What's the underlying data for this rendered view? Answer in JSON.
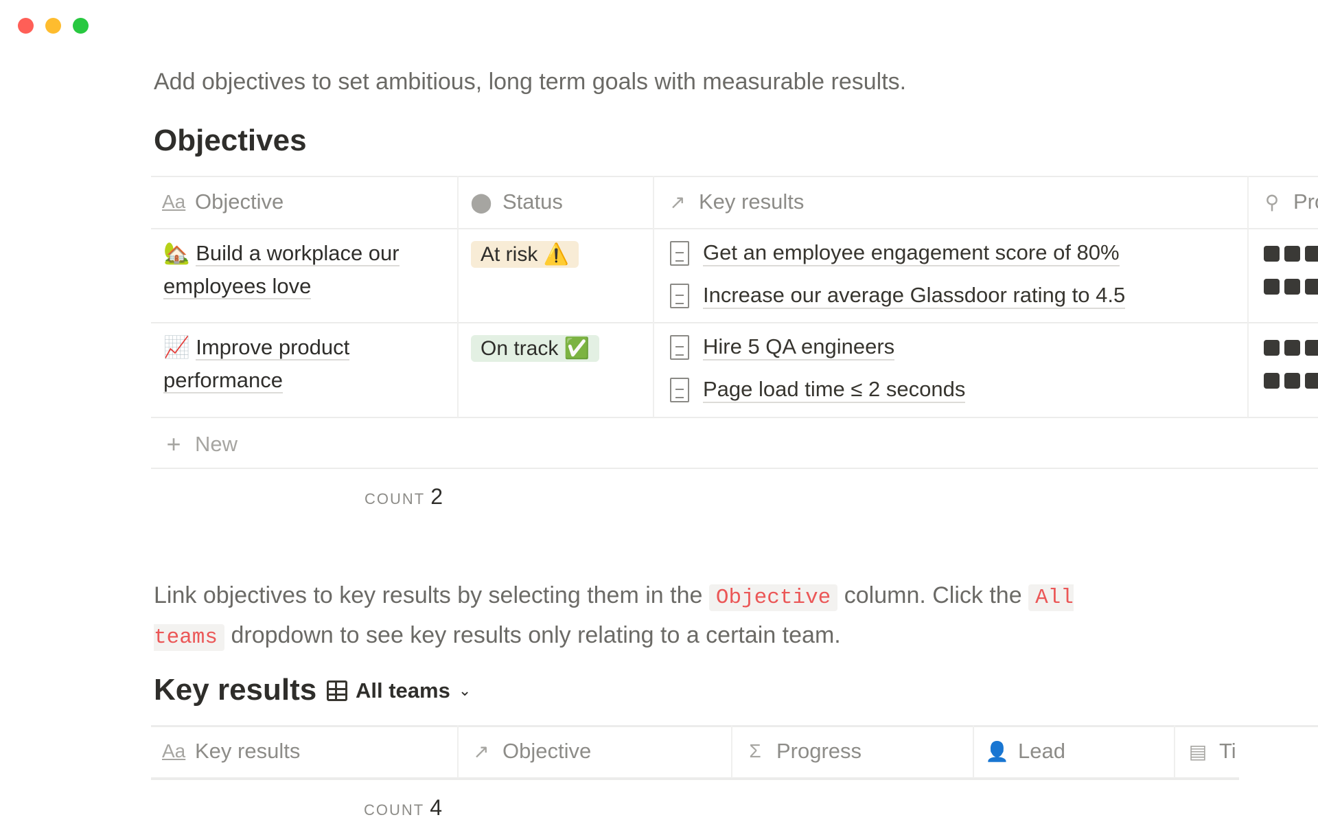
{
  "window": {
    "controls": [
      {
        "name": "close",
        "color": "#ff5f57"
      },
      {
        "name": "minimize",
        "color": "#febc2e"
      },
      {
        "name": "zoom",
        "color": "#28c840"
      }
    ]
  },
  "intro": "Add objectives to set ambitious, long term goals with measurable results.",
  "objectives": {
    "title": "Objectives",
    "columns": [
      {
        "label": "Objective",
        "icon": "text-aa-icon"
      },
      {
        "label": "Status",
        "icon": "select-circle-icon"
      },
      {
        "label": "Key results",
        "icon": "relation-arrow-icon"
      },
      {
        "label": "Pro",
        "icon": "search-icon"
      }
    ],
    "rows": [
      {
        "emoji": "🏡",
        "title": "Build a workplace our employees love",
        "status": "At risk ⚠️",
        "status_color": "#f8ecd6",
        "key_results": [
          "Get an employee engagement score of 80%",
          "Increase our average Glassdoor rating to 4.5"
        ]
      },
      {
        "emoji": "📈",
        "title": "Improve product performance",
        "status": "On track ✅",
        "status_color": "#e3f0e3",
        "key_results": [
          "Hire 5 QA engineers",
          "Page load time ≤ 2 seconds"
        ]
      }
    ],
    "new_label": "New",
    "count_label": "COUNT",
    "count_value": "2"
  },
  "para": {
    "p1": "Link objectives to key results by selecting them in the ",
    "code1": "Objective",
    "p2": " column. Click the ",
    "code2": "All teams",
    "p3": " dropdown to see key results only relating to a certain team."
  },
  "key_results": {
    "title": "Key results",
    "view_label": "All teams",
    "columns": [
      {
        "label": "Key results",
        "icon": "text-aa-icon"
      },
      {
        "label": "Objective",
        "icon": "relation-arrow-icon"
      },
      {
        "label": "Progress",
        "icon": "sigma-icon"
      },
      {
        "label": "Lead",
        "icon": "person-icon"
      },
      {
        "label": "Ti",
        "icon": "calendar-icon"
      }
    ],
    "count_label": "COUNT",
    "count_value": "4"
  }
}
